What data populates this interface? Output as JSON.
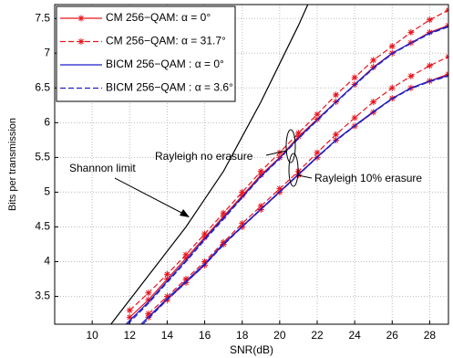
{
  "chart_data": {
    "type": "line",
    "xlabel": "SNR(dB)",
    "ylabel": "Bits per transmission",
    "xlim": [
      8,
      29
    ],
    "ylim": [
      3.1,
      7.7
    ],
    "xticks": [
      10,
      12,
      14,
      16,
      18,
      20,
      22,
      24,
      26,
      28
    ],
    "yticks": [
      3.5,
      4,
      4.5,
      5,
      5.5,
      6,
      6.5,
      7,
      7.5
    ],
    "grid": true,
    "legend": "upper left",
    "annotations": [
      "Rayleigh no erasure",
      "Shannon limit",
      "Rayleigh 10% erasure"
    ],
    "series": [
      {
        "name": "CM 256−QAM: α = 0°",
        "color": "#e8141c",
        "linestyle": "solid",
        "marker": "star",
        "group": "no erasure",
        "x": [
          12,
          13,
          14,
          15,
          16,
          17,
          18,
          19,
          20,
          21,
          22,
          23,
          24,
          25,
          26,
          27,
          28,
          29
        ],
        "values": [
          3.2,
          3.45,
          3.75,
          4.05,
          4.35,
          4.65,
          4.95,
          5.25,
          5.5,
          5.8,
          6.05,
          6.3,
          6.55,
          6.8,
          7.0,
          7.15,
          7.3,
          7.4
        ]
      },
      {
        "name": "CM 256−QAM: α = 31.7°",
        "color": "#e8141c",
        "linestyle": "dashed",
        "marker": "star",
        "x": [
          12,
          13,
          14,
          15,
          16,
          17,
          18,
          19,
          20,
          21,
          22,
          23,
          24,
          25,
          26,
          27,
          28,
          29
        ],
        "values": [
          3.3,
          3.55,
          3.82,
          4.1,
          4.4,
          4.7,
          5.0,
          5.3,
          5.57,
          5.85,
          6.12,
          6.4,
          6.65,
          6.9,
          7.1,
          7.3,
          7.48,
          7.62
        ]
      },
      {
        "name": "BICM 256−QAM : α = 0°",
        "color": "#1f1fc8",
        "linestyle": "solid",
        "marker": "none",
        "x": [
          11.8,
          13,
          14,
          15,
          16,
          17,
          18,
          19,
          20,
          21,
          22,
          23,
          24,
          25,
          26,
          27,
          28,
          29
        ],
        "values": [
          3.1,
          3.42,
          3.72,
          4.02,
          4.33,
          4.63,
          4.93,
          5.23,
          5.49,
          5.78,
          6.04,
          6.3,
          6.55,
          6.79,
          7.0,
          7.15,
          7.29,
          7.39
        ]
      },
      {
        "name": "BICM 256−QAM : α = 3.6°",
        "color": "#1f1fc8",
        "linestyle": "dashed",
        "marker": "none",
        "x": [
          11.9,
          13,
          14,
          15,
          16,
          17,
          18,
          19,
          20,
          21,
          22,
          23,
          24,
          25,
          26,
          27,
          28,
          29
        ],
        "values": [
          3.1,
          3.4,
          3.7,
          4.0,
          4.31,
          4.61,
          4.92,
          5.22,
          5.48,
          5.77,
          6.03,
          6.29,
          6.54,
          6.78,
          6.99,
          7.14,
          7.28,
          7.38
        ]
      },
      {
        "color": "#e8141c",
        "linestyle": "solid",
        "marker": "star",
        "x": [
          13,
          14,
          15,
          16,
          17,
          18,
          19,
          20,
          21,
          22,
          23,
          24,
          25,
          26,
          27,
          28,
          29
        ],
        "values": [
          3.2,
          3.45,
          3.7,
          3.95,
          4.25,
          4.5,
          4.75,
          5.0,
          5.25,
          5.5,
          5.75,
          5.95,
          6.15,
          6.35,
          6.5,
          6.6,
          6.7
        ]
      },
      {
        "color": "#e8141c",
        "linestyle": "dashed",
        "marker": "star",
        "x": [
          13,
          14,
          15,
          16,
          17,
          18,
          19,
          20,
          21,
          22,
          23,
          24,
          25,
          26,
          27,
          28,
          29
        ],
        "values": [
          3.25,
          3.5,
          3.75,
          4.0,
          4.28,
          4.55,
          4.8,
          5.05,
          5.3,
          5.57,
          5.83,
          6.07,
          6.3,
          6.5,
          6.67,
          6.82,
          6.95
        ]
      },
      {
        "color": "#1f1fc8",
        "linestyle": "solid",
        "marker": "none",
        "x": [
          12.6,
          14,
          15,
          16,
          17,
          18,
          19,
          20,
          21,
          22,
          23,
          24,
          25,
          26,
          27,
          28,
          29
        ],
        "values": [
          3.1,
          3.47,
          3.72,
          3.97,
          4.26,
          4.51,
          4.76,
          5.01,
          5.26,
          5.51,
          5.75,
          5.96,
          6.16,
          6.35,
          6.5,
          6.6,
          6.68
        ]
      },
      {
        "color": "#1f1fc8",
        "linestyle": "dashed",
        "marker": "none",
        "x": [
          12.7,
          14,
          15,
          16,
          17,
          18,
          19,
          20,
          21,
          22,
          23,
          24,
          25,
          26,
          27,
          28,
          29
        ],
        "values": [
          3.1,
          3.45,
          3.7,
          3.95,
          4.24,
          4.5,
          4.75,
          5.0,
          5.25,
          5.5,
          5.74,
          5.95,
          6.15,
          6.34,
          6.49,
          6.59,
          6.67
        ]
      },
      {
        "color": "#000000",
        "linestyle": "solid",
        "marker": "none",
        "x": [
          11,
          12,
          13,
          14,
          15,
          16,
          17,
          18,
          19,
          20,
          21,
          21.5
        ],
        "values": [
          3.1,
          3.45,
          3.8,
          4.15,
          4.5,
          4.9,
          5.3,
          5.8,
          6.3,
          6.85,
          7.4,
          7.7
        ]
      }
    ]
  }
}
